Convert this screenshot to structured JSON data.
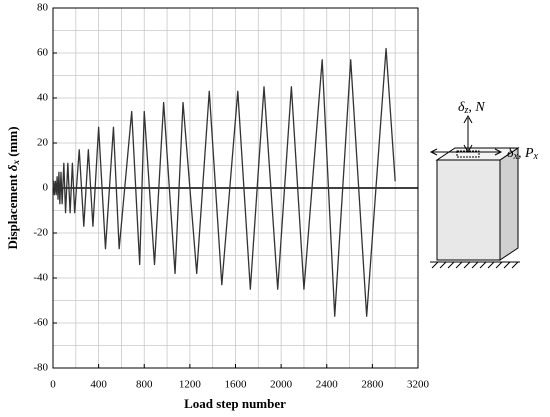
{
  "chart_data": {
    "type": "line",
    "xlabel": "Load step number",
    "ylabel": {
      "text": "Displacement ",
      "symbol": "δ",
      "sub": "x",
      "unit": " (mm)"
    },
    "x": [
      0,
      5,
      12,
      20,
      28,
      36,
      44,
      52,
      60,
      70,
      80,
      95,
      110,
      130,
      150,
      170,
      190,
      230,
      270,
      310,
      350,
      400,
      460,
      530,
      580,
      690,
      760,
      800,
      890,
      970,
      1070,
      1140,
      1260,
      1370,
      1480,
      1620,
      1730,
      1850,
      1970,
      2090,
      2200,
      2360,
      2470,
      2610,
      2750,
      2920,
      3000
    ],
    "values": [
      0,
      3,
      -3,
      3,
      -3,
      5,
      -5,
      7,
      -7,
      7,
      -7,
      11,
      -11,
      11,
      -11,
      11,
      -11,
      17,
      -17,
      17,
      -17,
      27,
      -27,
      27,
      -27,
      34,
      -34,
      34,
      -34,
      38,
      -38,
      38,
      -38,
      43,
      -43,
      43,
      -45,
      45,
      -45,
      45,
      -45,
      57,
      -57,
      57,
      -57,
      62,
      3
    ],
    "color": "#333333",
    "xlim": [
      0,
      3200
    ],
    "xticks": [
      0,
      400,
      800,
      1200,
      1600,
      2000,
      2400,
      2800,
      3200
    ],
    "ylim": [
      -80,
      80
    ],
    "yticks": [
      -80,
      -60,
      -40,
      -20,
      0,
      20,
      40,
      60,
      80
    ],
    "grid": true,
    "xgrid_minor": [
      200,
      600,
      1000,
      1400,
      1800,
      2200,
      2600,
      3000
    ],
    "ygrid_minor": [
      -70,
      -50,
      -30,
      -10,
      10,
      30,
      50,
      70
    ],
    "annotations": [
      {
        "symbol": "δ",
        "sub": "z",
        "rest": ", N"
      },
      {
        "symbol": "δ",
        "sub": "x",
        "rest": ", P",
        "sub2": "x"
      }
    ]
  }
}
